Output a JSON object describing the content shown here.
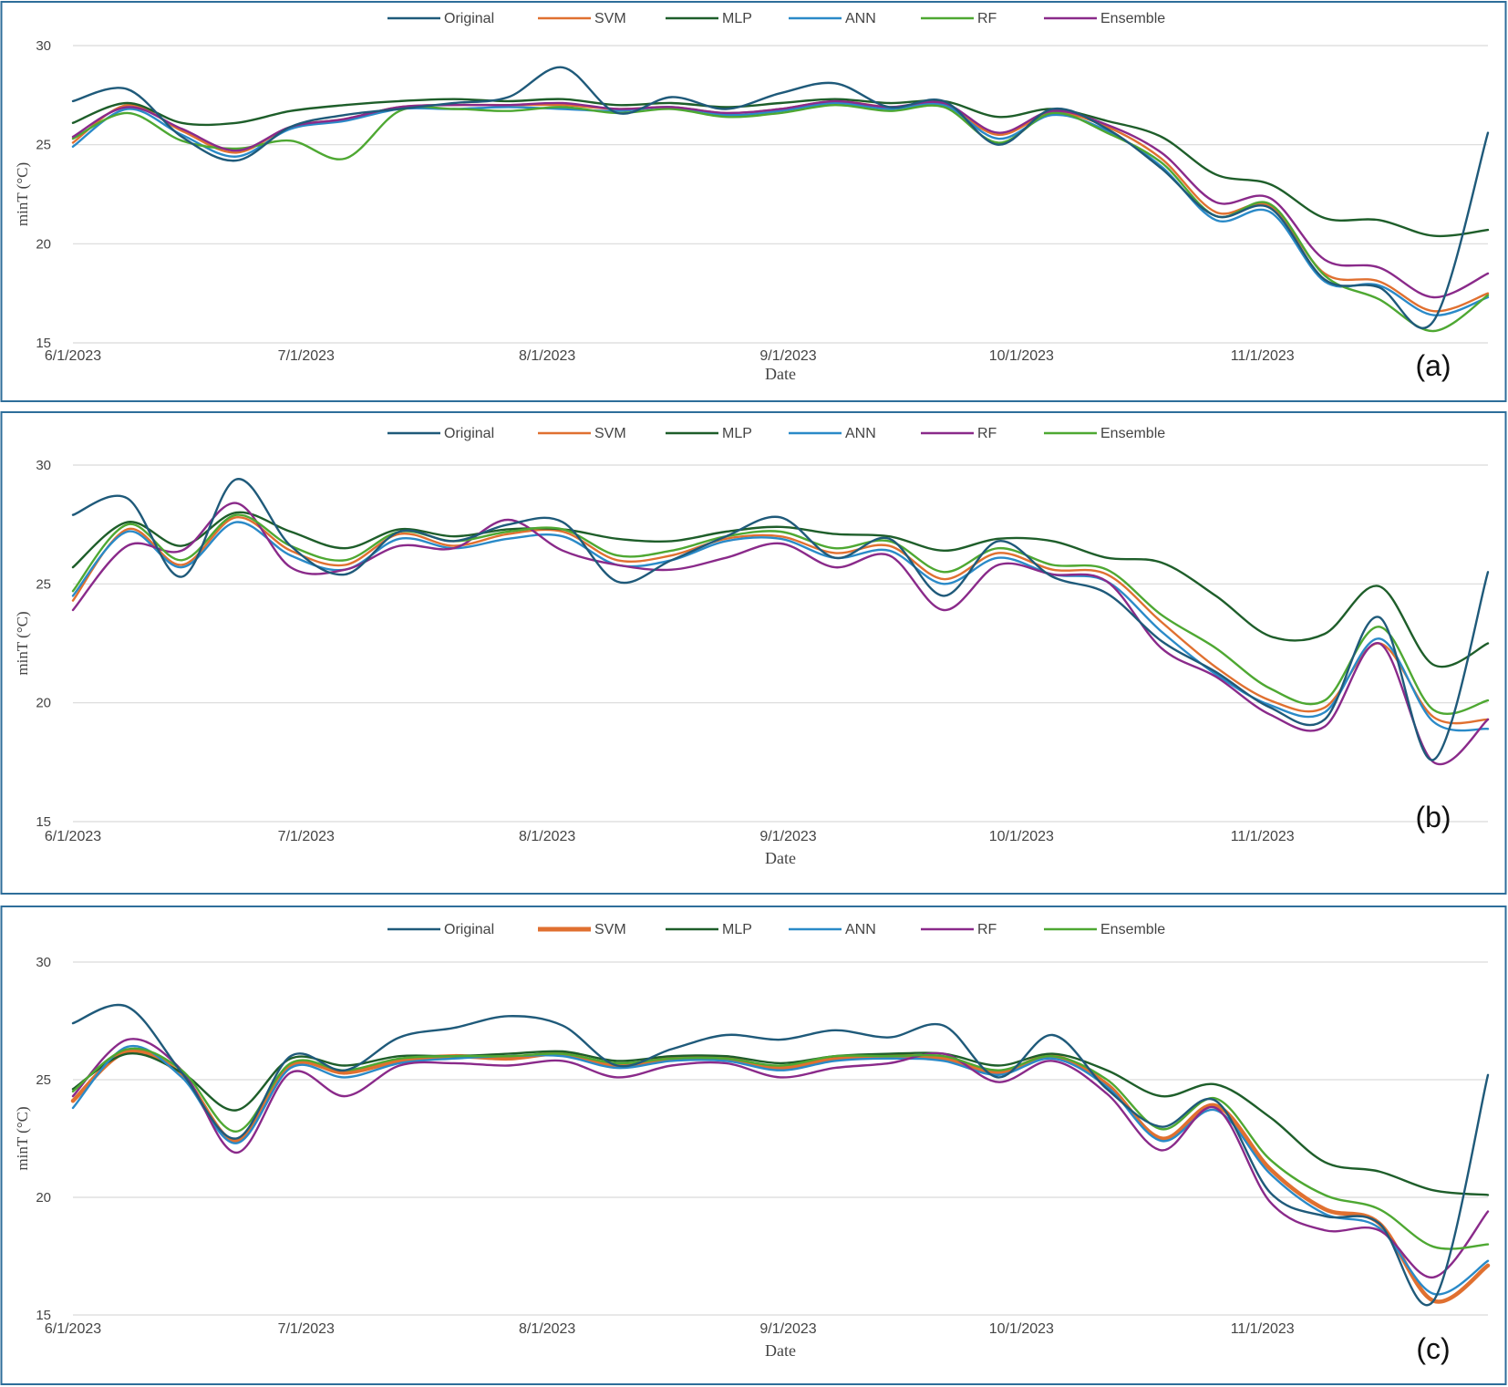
{
  "colors": {
    "Original": "#1f5a7a",
    "SVM": "#e07030",
    "MLP": "#1e5e2a",
    "ANN": "#2a8ac8",
    "RF_a": "#4ea832",
    "Ensemble_a": "#8a2a8a",
    "RF": "#8a2a8a",
    "Ensemble": "#4ea832",
    "frame": "#2e6e9a",
    "grid": "#d9d9d9"
  },
  "chart_data": [
    {
      "type": "line",
      "panel_label": "(a)",
      "xlabel": "Date",
      "ylabel": "minT (°C)",
      "ylim": [
        15,
        30
      ],
      "yticks": [
        15,
        20,
        25,
        30
      ],
      "xlim": [
        "6/1/2023",
        "11/30/2023"
      ],
      "x_ticks": [
        "6/1/2023",
        "7/1/2023",
        "8/1/2023",
        "9/1/2023",
        "10/1/2023",
        "11/1/2023"
      ],
      "grid": true,
      "legend_position": "top",
      "legend": [
        "Original",
        "SVM",
        "MLP",
        "ANN",
        "RF",
        "Ensemble"
      ],
      "x": [
        "6/1",
        "6/8",
        "6/15",
        "6/22",
        "6/29",
        "7/6",
        "7/13",
        "7/20",
        "7/27",
        "8/3",
        "8/10",
        "8/17",
        "8/24",
        "8/31",
        "9/7",
        "9/14",
        "9/21",
        "9/28",
        "10/5",
        "10/12",
        "10/19",
        "10/26",
        "11/2",
        "11/9",
        "11/16",
        "11/23",
        "11/30"
      ],
      "series": [
        {
          "name": "Original",
          "values": [
            27.2,
            27.8,
            25.4,
            24.2,
            25.9,
            26.5,
            26.8,
            27.1,
            27.4,
            28.9,
            26.6,
            27.4,
            26.8,
            27.6,
            28.1,
            26.9,
            27.2,
            25.0,
            26.8,
            25.8,
            23.8,
            21.4,
            21.8,
            18.2,
            17.8,
            16.1,
            25.6
          ]
        },
        {
          "name": "SVM",
          "values": [
            25.1,
            27.0,
            25.7,
            24.6,
            25.9,
            26.3,
            26.9,
            27.0,
            27.0,
            27.0,
            26.8,
            26.9,
            26.6,
            26.8,
            27.2,
            26.9,
            27.0,
            25.5,
            26.6,
            25.9,
            24.3,
            21.6,
            21.9,
            18.5,
            18.1,
            16.6,
            17.5
          ]
        },
        {
          "name": "MLP",
          "values": [
            26.1,
            27.1,
            26.1,
            26.1,
            26.7,
            27.0,
            27.2,
            27.3,
            27.2,
            27.3,
            27.0,
            27.1,
            26.9,
            27.1,
            27.3,
            27.1,
            27.2,
            26.4,
            26.8,
            26.2,
            25.4,
            23.5,
            23.0,
            21.3,
            21.2,
            20.4,
            20.7
          ]
        },
        {
          "name": "ANN",
          "values": [
            24.9,
            26.8,
            25.5,
            24.4,
            25.8,
            26.2,
            26.8,
            26.8,
            26.9,
            26.8,
            26.7,
            26.9,
            26.5,
            26.7,
            27.1,
            26.8,
            27.0,
            25.3,
            26.5,
            25.7,
            23.9,
            21.2,
            21.6,
            18.1,
            17.9,
            16.4,
            17.3
          ]
        },
        {
          "name": "RF",
          "values": [
            25.3,
            26.6,
            25.2,
            24.8,
            25.2,
            24.3,
            26.7,
            26.8,
            26.7,
            26.9,
            26.6,
            26.8,
            26.4,
            26.6,
            27.0,
            26.7,
            26.9,
            25.1,
            26.6,
            25.6,
            24.1,
            21.4,
            22.0,
            18.4,
            17.2,
            15.6,
            17.4
          ]
        },
        {
          "name": "Ensemble",
          "values": [
            25.4,
            26.9,
            25.8,
            24.7,
            25.9,
            26.3,
            26.9,
            27.0,
            27.0,
            27.1,
            26.8,
            26.9,
            26.6,
            26.8,
            27.2,
            26.9,
            27.1,
            25.6,
            26.7,
            26.0,
            24.6,
            22.1,
            22.3,
            19.2,
            18.8,
            17.3,
            18.5
          ]
        }
      ]
    },
    {
      "type": "line",
      "panel_label": "(b)",
      "xlabel": "Date",
      "ylabel": "minT (°C)",
      "ylim": [
        15,
        30
      ],
      "yticks": [
        15,
        20,
        25,
        30
      ],
      "xlim": [
        "6/1/2023",
        "11/30/2023"
      ],
      "x_ticks": [
        "6/1/2023",
        "7/1/2023",
        "8/1/2023",
        "9/1/2023",
        "10/1/2023",
        "11/1/2023"
      ],
      "grid": true,
      "legend_position": "top",
      "legend": [
        "Original",
        "SVM",
        "MLP",
        "ANN",
        "RF",
        "Ensemble"
      ],
      "x": [
        "6/1",
        "6/8",
        "6/15",
        "6/22",
        "6/29",
        "7/6",
        "7/13",
        "7/20",
        "7/27",
        "8/3",
        "8/10",
        "8/17",
        "8/24",
        "8/31",
        "9/7",
        "9/14",
        "9/21",
        "9/28",
        "10/5",
        "10/12",
        "10/19",
        "10/26",
        "11/2",
        "11/9",
        "11/16",
        "11/23",
        "11/30"
      ],
      "series": [
        {
          "name": "Original",
          "values": [
            27.9,
            28.6,
            25.3,
            29.4,
            26.6,
            25.4,
            27.2,
            26.8,
            27.5,
            27.6,
            25.1,
            26.0,
            27.0,
            27.8,
            26.1,
            26.9,
            24.5,
            26.8,
            25.3,
            24.6,
            22.6,
            21.3,
            19.8,
            19.3,
            23.6,
            17.6,
            25.5
          ]
        },
        {
          "name": "SVM",
          "values": [
            24.3,
            27.3,
            25.8,
            27.8,
            26.4,
            25.8,
            27.1,
            26.6,
            27.1,
            27.2,
            26.0,
            26.2,
            26.9,
            27.0,
            26.3,
            26.6,
            25.2,
            26.3,
            25.6,
            25.4,
            23.4,
            21.5,
            20.1,
            19.8,
            22.5,
            19.4,
            19.3
          ]
        },
        {
          "name": "MLP",
          "values": [
            25.7,
            27.6,
            26.6,
            28.0,
            27.2,
            26.5,
            27.3,
            27.0,
            27.3,
            27.3,
            26.9,
            26.8,
            27.2,
            27.4,
            27.1,
            27.0,
            26.4,
            26.9,
            26.8,
            26.1,
            25.9,
            24.5,
            22.8,
            22.9,
            24.9,
            21.6,
            22.5
          ]
        },
        {
          "name": "ANN",
          "values": [
            24.5,
            27.2,
            25.7,
            27.6,
            26.2,
            25.6,
            26.9,
            26.5,
            26.9,
            27.0,
            25.8,
            26.0,
            26.8,
            26.9,
            26.1,
            26.4,
            25.0,
            26.1,
            25.4,
            25.1,
            23.0,
            21.2,
            19.9,
            19.6,
            22.7,
            19.2,
            18.9
          ]
        },
        {
          "name": "RF",
          "values": [
            23.9,
            26.6,
            26.4,
            28.4,
            25.7,
            25.6,
            26.6,
            26.5,
            27.7,
            26.4,
            25.8,
            25.6,
            26.1,
            26.7,
            25.7,
            26.2,
            23.9,
            25.8,
            25.4,
            25.1,
            22.3,
            21.1,
            19.5,
            19.0,
            22.5,
            17.5,
            19.3
          ]
        },
        {
          "name": "Ensemble",
          "values": [
            24.7,
            27.5,
            26.0,
            27.9,
            26.6,
            26.0,
            27.2,
            26.8,
            27.2,
            27.3,
            26.2,
            26.4,
            27.0,
            27.2,
            26.5,
            26.8,
            25.5,
            26.5,
            25.8,
            25.6,
            23.7,
            22.3,
            20.6,
            20.1,
            23.2,
            19.7,
            20.1
          ]
        }
      ]
    },
    {
      "type": "line",
      "panel_label": "(c)",
      "xlabel": "Date",
      "ylabel": "minT (°C)",
      "ylim": [
        15,
        30
      ],
      "yticks": [
        15,
        20,
        25,
        30
      ],
      "xlim": [
        "6/1/2023",
        "11/30/2023"
      ],
      "x_ticks": [
        "6/1/2023",
        "7/1/2023",
        "8/1/2023",
        "9/1/2023",
        "10/1/2023",
        "11/1/2023"
      ],
      "grid": true,
      "legend_position": "top",
      "legend": [
        "Original",
        "SVM",
        "MLP",
        "ANN",
        "RF",
        "Ensemble"
      ],
      "x": [
        "6/1",
        "6/8",
        "6/15",
        "6/22",
        "6/29",
        "7/6",
        "7/13",
        "7/20",
        "7/27",
        "8/3",
        "8/10",
        "8/17",
        "8/24",
        "8/31",
        "9/7",
        "9/14",
        "9/21",
        "9/28",
        "10/5",
        "10/12",
        "10/19",
        "10/26",
        "11/2",
        "11/9",
        "11/16",
        "11/23",
        "11/30"
      ],
      "series": [
        {
          "name": "Original",
          "values": [
            27.4,
            28.1,
            25.3,
            22.5,
            26.0,
            25.4,
            26.8,
            27.2,
            27.7,
            27.3,
            25.6,
            26.3,
            26.9,
            26.7,
            27.1,
            26.8,
            27.3,
            25.1,
            26.9,
            24.6,
            23.0,
            24.1,
            20.2,
            19.2,
            18.9,
            15.6,
            25.2
          ]
        },
        {
          "name": "SVM",
          "values": [
            24.1,
            26.2,
            25.2,
            22.4,
            25.6,
            25.3,
            25.8,
            26.0,
            25.9,
            26.1,
            25.6,
            25.9,
            25.9,
            25.5,
            25.9,
            26.0,
            25.9,
            25.3,
            26.0,
            24.8,
            22.5,
            23.9,
            21.2,
            19.5,
            18.9,
            15.6,
            17.1
          ]
        },
        {
          "name": "MLP",
          "values": [
            24.6,
            26.1,
            25.3,
            23.7,
            25.9,
            25.6,
            26.0,
            26.0,
            26.1,
            26.2,
            25.8,
            26.0,
            26.0,
            25.7,
            26.0,
            26.1,
            26.1,
            25.6,
            26.1,
            25.4,
            24.3,
            24.8,
            23.4,
            21.5,
            21.1,
            20.3,
            20.1
          ]
        },
        {
          "name": "ANN",
          "values": [
            23.8,
            26.4,
            25.1,
            22.3,
            25.5,
            25.1,
            25.7,
            25.9,
            26.0,
            26.0,
            25.5,
            25.8,
            25.8,
            25.4,
            25.8,
            25.9,
            25.8,
            25.2,
            25.9,
            24.7,
            22.4,
            23.7,
            21.0,
            19.3,
            18.7,
            15.9,
            17.3
          ]
        },
        {
          "name": "RF",
          "values": [
            24.3,
            26.7,
            25.4,
            21.9,
            25.3,
            24.3,
            25.6,
            25.7,
            25.6,
            25.8,
            25.1,
            25.6,
            25.7,
            25.1,
            25.5,
            25.7,
            26.1,
            24.9,
            25.8,
            24.4,
            22.0,
            23.8,
            19.8,
            18.6,
            18.6,
            16.6,
            19.4
          ]
        },
        {
          "name": "Ensemble",
          "values": [
            24.5,
            26.3,
            25.4,
            22.8,
            25.7,
            25.4,
            25.9,
            26.0,
            26.0,
            26.1,
            25.7,
            25.9,
            25.9,
            25.6,
            26.0,
            26.0,
            26.0,
            25.4,
            26.0,
            25.0,
            22.9,
            24.2,
            21.6,
            20.1,
            19.5,
            17.9,
            18.0
          ]
        }
      ]
    }
  ]
}
